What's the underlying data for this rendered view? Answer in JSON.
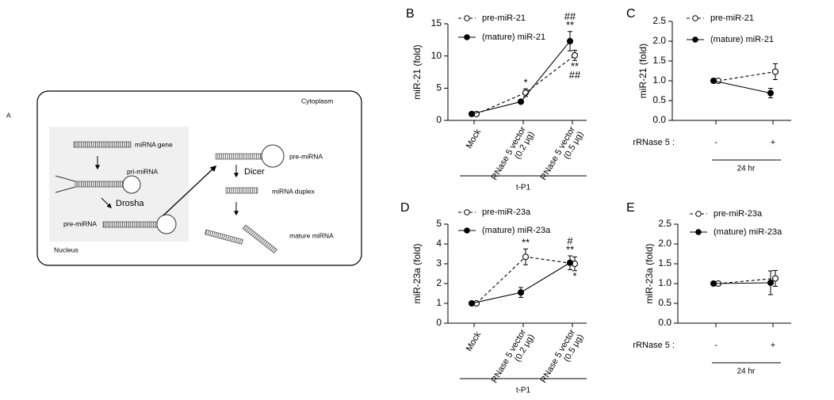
{
  "diagram": {
    "label": "A",
    "texts": {
      "cytoplasm": "Cytoplasm",
      "nucleus": "Nucleus",
      "gene": "miRNA gene",
      "pri": "pri-miRNA",
      "drosha": "Drosha",
      "pre_nuclear": "pre-miRNA",
      "pre_cyto": "pre-miRNA",
      "dicer": "Dicer",
      "duplex": "miRNA duplex",
      "mature": "mature miRNA"
    }
  },
  "chart_data": [
    {
      "type": "line",
      "label": "B",
      "y_label": "miR-21 (fold)",
      "categories": [
        "Mock",
        [
          "RNase 5 vector",
          "(0.2 μg)"
        ],
        [
          "RNase 5 vector",
          "(0.5 μg)"
        ]
      ],
      "group_label": "t-P1",
      "ylim": [
        0,
        15
      ],
      "yticks": [
        0,
        5,
        10,
        15
      ],
      "series": [
        {
          "name": "pre-miR-21",
          "color": "#000000",
          "line_style": "dashed",
          "marker": "open",
          "values": [
            1,
            4.3,
            10.1
          ],
          "errors": [
            0.1,
            0.6,
            0.8
          ],
          "annotations": [
            null,
            [
              "*"
            ],
            [
              "**",
              "##"
            ]
          ]
        },
        {
          "name": "(mature) miR-21",
          "color": "#000000",
          "line_style": "solid",
          "marker": "filled",
          "values": [
            1,
            2.9,
            12.3
          ],
          "errors": [
            0.1,
            0.2,
            1.5
          ],
          "annotations": [
            null,
            null,
            [
              "##",
              "**"
            ]
          ]
        }
      ]
    },
    {
      "type": "line",
      "label": "C",
      "y_label": "miR-21  (fold)",
      "categories": [
        "-",
        "+"
      ],
      "row_label": "rRNase 5 :",
      "group_label": "24 hr",
      "ylim": [
        0,
        2.5
      ],
      "yticks": [
        {
          "value": 0,
          "label": "0.0"
        },
        0.5,
        {
          "value": 1,
          "label": "1.0"
        },
        1.5,
        {
          "value": 2,
          "label": "2.0"
        },
        2.5
      ],
      "series": [
        {
          "name": "pre-miR-21",
          "color": "#000000",
          "line_style": "dashed",
          "marker": "open",
          "values": [
            1.0,
            1.23
          ],
          "errors": [
            0.02,
            0.2
          ]
        },
        {
          "name": "(mature) miR-21",
          "color": "#000000",
          "line_style": "solid",
          "marker": "filled",
          "values": [
            1.0,
            0.69
          ],
          "errors": [
            0.02,
            0.12
          ]
        }
      ]
    },
    {
      "type": "line",
      "label": "D",
      "y_label": "miR-23a  (fold)",
      "categories": [
        "Mock",
        [
          "RNase 5 vector",
          "(0.2 μg)"
        ],
        [
          "RNase 5 vector",
          "(0.5 μg)"
        ]
      ],
      "group_label": "t-P1",
      "ylim": [
        0,
        5
      ],
      "yticks": [
        0,
        1,
        2,
        3,
        4,
        5
      ],
      "series": [
        {
          "name": "pre-miR-23a",
          "color": "#000000",
          "line_style": "dashed",
          "marker": "open",
          "values": [
            1,
            3.35,
            3.0
          ],
          "errors": [
            0.05,
            0.4,
            0.35
          ],
          "annotations": [
            null,
            [
              "**"
            ],
            [
              "*"
            ]
          ]
        },
        {
          "name": "(mature) miR-23a",
          "color": "#000000",
          "line_style": "solid",
          "marker": "filled",
          "values": [
            1,
            1.55,
            3.05
          ],
          "errors": [
            0.05,
            0.25,
            0.35
          ],
          "annotations": [
            null,
            null,
            [
              "#",
              "**"
            ]
          ]
        }
      ]
    },
    {
      "type": "line",
      "label": "E",
      "y_label": "miR-23a (fold)",
      "categories": [
        "-",
        "+"
      ],
      "row_label": "rRNase 5 :",
      "group_label": "24 hr",
      "ylim": [
        0,
        2.5
      ],
      "yticks": [
        {
          "value": 0,
          "label": "0.0"
        },
        0.5,
        {
          "value": 1,
          "label": "1.0"
        },
        1.5,
        {
          "value": 2,
          "label": "2.0"
        },
        2.5
      ],
      "series": [
        {
          "name": "pre-miR-23a",
          "color": "#000000",
          "line_style": "dashed",
          "marker": "open",
          "values": [
            1.0,
            1.13
          ],
          "errors": [
            0.02,
            0.2
          ]
        },
        {
          "name": "(mature) miR-23a",
          "color": "#000000",
          "line_style": "solid",
          "marker": "filled",
          "values": [
            1.0,
            1.02
          ],
          "errors": [
            0.02,
            0.3
          ]
        }
      ]
    }
  ]
}
